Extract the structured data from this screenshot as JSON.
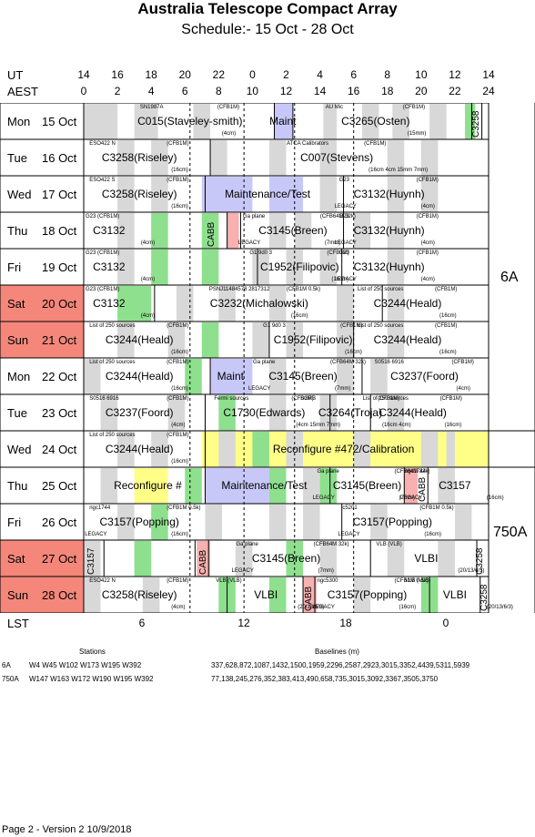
{
  "title": "Australia Telescope Compact Array",
  "subtitle": "Schedule:- 15 Oct - 28 Oct",
  "axes": {
    "ut_label": "UT",
    "aest_label": "AEST",
    "lst_label": "LST",
    "ut_ticks": [
      "14",
      "16",
      "18",
      "20",
      "22",
      "0",
      "2",
      "4",
      "6",
      "8",
      "10",
      "12",
      "14"
    ],
    "aest_ticks": [
      "0",
      "2",
      "4",
      "6",
      "8",
      "10",
      "12",
      "14",
      "16",
      "18",
      "20",
      "22",
      "24"
    ],
    "lst_ticks": [
      "6",
      "12",
      "18",
      "0"
    ]
  },
  "days": [
    {
      "dow": "Mon",
      "date": "15 Oct",
      "weekend": false
    },
    {
      "dow": "Tue",
      "date": "16 Oct",
      "weekend": false
    },
    {
      "dow": "Wed",
      "date": "17 Oct",
      "weekend": false
    },
    {
      "dow": "Thu",
      "date": "18 Oct",
      "weekend": false
    },
    {
      "dow": "Fri",
      "date": "19 Oct",
      "weekend": false
    },
    {
      "dow": "Sat",
      "date": "20 Oct",
      "weekend": true
    },
    {
      "dow": "Sun",
      "date": "21 Oct",
      "weekend": true
    },
    {
      "dow": "Mon",
      "date": "22 Oct",
      "weekend": false
    },
    {
      "dow": "Tue",
      "date": "23 Oct",
      "weekend": false
    },
    {
      "dow": "Wed",
      "date": "24 Oct",
      "weekend": false
    },
    {
      "dow": "Thu",
      "date": "25 Oct",
      "weekend": false
    },
    {
      "dow": "Fri",
      "date": "26 Oct",
      "weekend": false
    },
    {
      "dow": "Sat",
      "date": "27 Oct",
      "weekend": true
    },
    {
      "dow": "Sun",
      "date": "28 Oct",
      "weekend": true
    }
  ],
  "configs": [
    "6A",
    "750A"
  ],
  "blocks": [
    {
      "label": "C015(Staveley-smith)",
      "src": "SN1987A",
      "band": "(CFB1M)",
      "wl": "(4cm)"
    },
    {
      "label": "Maint"
    },
    {
      "label": "C3265(Osten)",
      "src": "AU Mic",
      "band": "(CFB1M)",
      "wl": "(15mm)"
    },
    {
      "label": "C3258",
      "vertical": true
    },
    {
      "label": "C3258(Riseley)",
      "src": "ESO422 N",
      "band": "(CFB1M)",
      "wl": "(16cm)"
    },
    {
      "label": "C007(Stevens)",
      "src": "ATCA Calibrators",
      "band": "(CFB1M)",
      "wl": "(16cm 4cm 15mm 7mm)"
    },
    {
      "label": "C3258(Riseley)",
      "src": "ESO422 S",
      "band": "(CFB1M)",
      "wl": "(16cm)"
    },
    {
      "label": "Maintenance/Test"
    },
    {
      "label": "C3132(Huynh)",
      "src": "G23",
      "band": "(CFB1M)",
      "wl": "(4cm)",
      "legacy": "LEGACY"
    },
    {
      "label": "C3132",
      "src": "G23 (CFB1M)",
      "wl": "(4cm)"
    },
    {
      "label": "CABB",
      "vertical": true
    },
    {
      "label": "C3145(Breen)",
      "src": "Ga plane",
      "band": "(CFB64M 32k)",
      "wl": "(7mm)",
      "legacy": "LEGACY"
    },
    {
      "label": "C3132(Huynh)",
      "src": "G23",
      "band": "(CFB1M)",
      "wl": "(4cm)",
      "legacy": "LEGACY"
    },
    {
      "label": "C3132",
      "src": "G23 (CFB1M)",
      "wl": "(4cm)"
    },
    {
      "label": "C1952(Filipovic)",
      "src": "G1 9d0 3",
      "band": "(CFB1M)",
      "wl": "(16cm)"
    },
    {
      "label": "C3132(Huynh)",
      "src": "G23",
      "band": "(CFB1M)",
      "wl": "(4cm)",
      "legacy": "LEGACY"
    },
    {
      "label": "C3132",
      "src": "G23 (CFB1M)",
      "wl": "(4cm)"
    },
    {
      "label": "C3232(Michalowski)",
      "src": "PSNJ11484578 2817312",
      "band": "(CFB1M 0.5k)",
      "wl": "(16cm)"
    },
    {
      "label": "C3244(Heald)",
      "src": "List of 250 sources",
      "band": "(CFB1M)",
      "wl": "(16cm)"
    },
    {
      "label": "C3244(Heald)",
      "src": "List of 250 sources",
      "band": "(CFB1M)",
      "wl": "(16cm)"
    },
    {
      "label": "C1952(Filipovic)",
      "src": "G1 9d0 3",
      "band": "(CFB1M)",
      "wl": "(16cm)"
    },
    {
      "label": "C3244(Heald)",
      "src": "List of 250 sources",
      "band": "(CFB1M)",
      "wl": "(16cm)"
    },
    {
      "label": "C3244(Heald)",
      "src": "List of 250 sources",
      "band": "(CFB1M)",
      "wl": "(16cm)"
    },
    {
      "label": "Maint"
    },
    {
      "label": "C3145(Breen)",
      "src": "Ga plane",
      "band": "(CFB64M 32k)",
      "wl": "(7mm)",
      "legacy": "LEGACY"
    },
    {
      "label": "C3237(Foord)",
      "src": "S0516 6916",
      "band": "(CFB1M)",
      "wl": "(4cm)"
    },
    {
      "label": "C3237(Foord)",
      "src": "S0516 6916",
      "band": "(CFB1M)",
      "wl": "(4cm)"
    },
    {
      "label": "C1730(Edwards)",
      "src": "Fermi sources",
      "band": "(CFB1M)",
      "wl": "(4cm 15mm 7mm)"
    },
    {
      "label": "C3264(Troja)",
      "src": "SGRB",
      "band": "(CFB1M)",
      "wl": "(16cm 4cm)"
    },
    {
      "label": "C3244(Heald)",
      "src": "List of 250 sources",
      "band": "(CFB1M)",
      "wl": "(16cm)"
    },
    {
      "label": "C3244(Heald)",
      "src": "List of 250 sources",
      "band": "(CFB1M)",
      "wl": "(16cm)"
    },
    {
      "label": "Reconfigure #472/Calibration"
    },
    {
      "label": "Reconfigure #"
    },
    {
      "label": "Maintenance/Test"
    },
    {
      "label": "C3145(Breen)",
      "src": "Ga plane",
      "band": "(CFB64M 32k)",
      "wl": "(7mm)",
      "legacy": "LEGACY"
    },
    {
      "label": "CABB",
      "vertical": true
    },
    {
      "label": "C3157",
      "src": "ngc1744",
      "band": "",
      "wl": "(16cm)",
      "legacy": "LEGACY"
    },
    {
      "label": "C3157(Popping)",
      "src": "ngc1744",
      "band": "(CFB1M 0.5k)",
      "wl": "(16cm)",
      "legacy": "LEGACY"
    },
    {
      "label": "C3157(Popping)",
      "src": "c5201",
      "band": "(CFB1M 0.5k)",
      "wl": "(16cm)",
      "legacy": "LEGACY"
    },
    {
      "label": "C3157",
      "vertical": true
    },
    {
      "label": "CABB",
      "vertical": true
    },
    {
      "label": "C3145(Breen)",
      "src": "Ga plane",
      "band": "(CFB64M 32k)",
      "wl": "(7mm)",
      "legacy": "LEGACY"
    },
    {
      "label": "VLBI",
      "src": "VLB (VLB)",
      "wl": "(20/13/6/3)"
    },
    {
      "label": "C3258",
      "vertical": true
    },
    {
      "label": "C3258(Riseley)",
      "src": "ESO422 N",
      "band": "(CFB1M)",
      "wl": "(4cm)"
    },
    {
      "label": "VLBI",
      "src": "VLB (VLB)",
      "wl": "(20/13/6/3)"
    },
    {
      "label": "CABB",
      "vertical": true
    },
    {
      "label": "C3157(Popping)",
      "src": "ngc5300",
      "band": "(CFB1M 0.5k)",
      "wl": "(16cm)",
      "legacy": "LEGACY"
    },
    {
      "label": "VLBI",
      "src": "VLB (VLB)",
      "wl": "(20/13/6/3)"
    },
    {
      "label": "C3258",
      "vertical": true
    }
  ],
  "footer": {
    "stations_header": "Stations",
    "baselines_header": "Baselines (m)",
    "rows": [
      {
        "config": "6A",
        "stations": "W4 W45 W102 W173 W195 W392",
        "baselines": "337,628,872,1087,1432,1500,1959,2296,2587,2923,3015,3352,4439,5311,5939"
      },
      {
        "config": "750A",
        "stations": "W147 W163 W172 W190 W195 W392",
        "baselines": "77,138,245,276,352,383,413,490,658,735,3015,3092,3367,3505,3750"
      }
    ],
    "page_info": "Page 2 - Version 2  10/9/2018"
  },
  "colors": {
    "grey": "#d8d8d8",
    "green": "#8ee08e",
    "lavender": "#c8c8f8",
    "yellow": "#ffff88",
    "pink": "#f8b0b0",
    "weekend": "#f4877a"
  }
}
